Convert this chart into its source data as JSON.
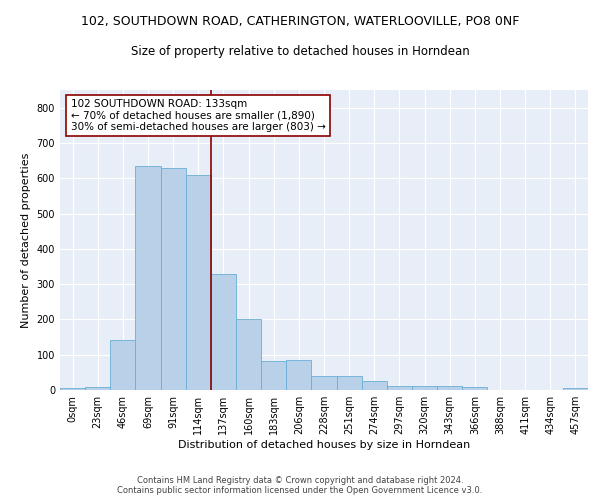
{
  "title_line1": "102, SOUTHDOWN ROAD, CATHERINGTON, WATERLOOVILLE, PO8 0NF",
  "title_line2": "Size of property relative to detached houses in Horndean",
  "xlabel": "Distribution of detached houses by size in Horndean",
  "ylabel": "Number of detached properties",
  "bar_color": "#b8d0e8",
  "bar_edge_color": "#6aaed6",
  "bar_values": [
    5,
    8,
    143,
    635,
    630,
    610,
    330,
    200,
    83,
    85,
    40,
    40,
    25,
    12,
    12,
    10,
    8,
    0,
    0,
    0,
    5
  ],
  "bin_labels": [
    "0sqm",
    "23sqm",
    "46sqm",
    "69sqm",
    "91sqm",
    "114sqm",
    "137sqm",
    "160sqm",
    "183sqm",
    "206sqm",
    "228sqm",
    "251sqm",
    "274sqm",
    "297sqm",
    "320sqm",
    "343sqm",
    "366sqm",
    "388sqm",
    "411sqm",
    "434sqm",
    "457sqm"
  ],
  "ylim": [
    0,
    850
  ],
  "yticks": [
    0,
    100,
    200,
    300,
    400,
    500,
    600,
    700,
    800
  ],
  "vline_x": 5.5,
  "vline_color": "#8b0000",
  "annotation_text": "102 SOUTHDOWN ROAD: 133sqm\n← 70% of detached houses are smaller (1,890)\n30% of semi-detached houses are larger (803) →",
  "annotation_box_color": "white",
  "annotation_box_edge": "#8b0000",
  "footer_text": "Contains HM Land Registry data © Crown copyright and database right 2024.\nContains public sector information licensed under the Open Government Licence v3.0.",
  "bg_color": "#e8eef7",
  "grid_color": "white",
  "title1_fontsize": 9,
  "title2_fontsize": 8.5,
  "xlabel_fontsize": 8,
  "ylabel_fontsize": 8,
  "tick_fontsize": 7,
  "annotation_fontsize": 7.5,
  "footer_fontsize": 6
}
